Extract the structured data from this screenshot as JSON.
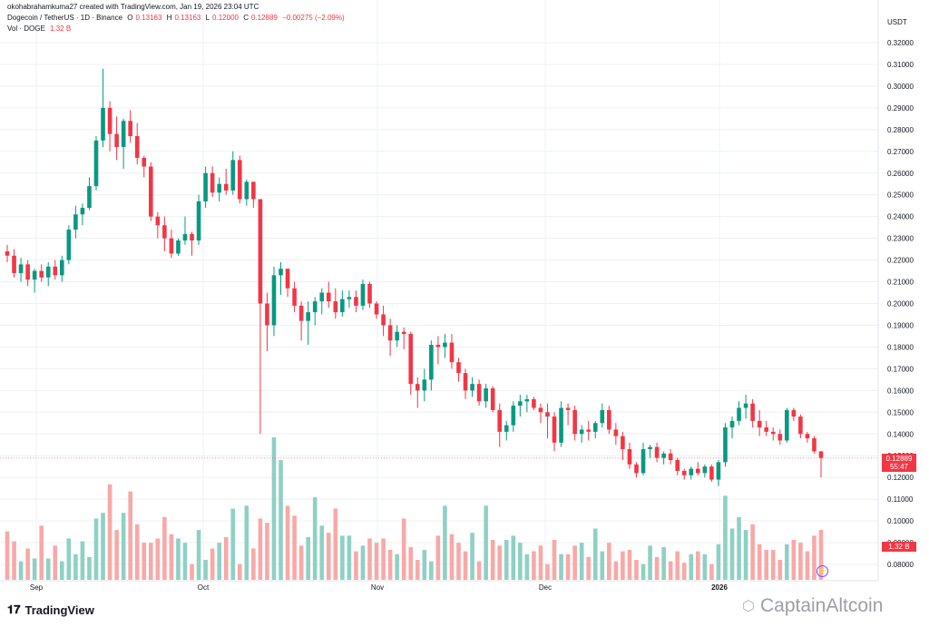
{
  "header": {
    "credit": "okohabrahamkuma27 created with TradingView.com, Jan 19, 2026 23:04 UTC",
    "symbol_line": "Dogecoin / TetherUS · 1D · Binance",
    "open_label": "O",
    "open": "0.13163",
    "high_label": "H",
    "high": "0.13163",
    "low_label": "L",
    "low": "0.12000",
    "close_label": "C",
    "close": "0.12889",
    "change": "−0.00275 (−2.09%)",
    "vol_label": "Vol · DOGE",
    "vol_value": "1.32 B"
  },
  "axis": {
    "unit": "USDT",
    "price_ticks": [
      "0.32000",
      "0.31000",
      "0.30000",
      "0.29000",
      "0.28000",
      "0.27000",
      "0.26000",
      "0.25000",
      "0.24000",
      "0.23000",
      "0.22000",
      "0.21000",
      "0.20000",
      "0.19000",
      "0.18000",
      "0.17000",
      "0.16000",
      "0.15000",
      "0.14000",
      "0.13000",
      "0.12000",
      "0.11000",
      "0.10000",
      "0.09000",
      "0.08000"
    ],
    "month_labels": [
      "Sep",
      "Oct",
      "Nov",
      "Dec",
      "2026"
    ],
    "current_price": "0.12889",
    "countdown": "55:47",
    "volume_tag": "1.32 B"
  },
  "branding": {
    "logo_text": "TradingView",
    "logo_icon": "tradingview-logo-icon",
    "watermark": "CaptainAltcoin",
    "watermark_icon": "captainaltcoin-icon"
  },
  "colors": {
    "up": "#089981",
    "down": "#f23645",
    "vol_up": "#8fd0c5",
    "vol_down": "#f7a9a7",
    "grid": "#eef0f3"
  },
  "chart_data": {
    "type": "candlestick",
    "x_labels": [
      "Sep",
      "Oct",
      "Nov",
      "Dec",
      "2026"
    ],
    "ylim": [
      0.08,
      0.32
    ],
    "candles": [
      [
        0.224,
        0.227,
        0.219,
        0.222
      ],
      [
        0.222,
        0.225,
        0.212,
        0.214
      ],
      [
        0.214,
        0.221,
        0.21,
        0.218
      ],
      [
        0.218,
        0.22,
        0.208,
        0.211
      ],
      [
        0.211,
        0.216,
        0.205,
        0.215
      ],
      [
        0.215,
        0.218,
        0.21,
        0.212
      ],
      [
        0.212,
        0.219,
        0.208,
        0.217
      ],
      [
        0.217,
        0.22,
        0.211,
        0.213
      ],
      [
        0.213,
        0.222,
        0.21,
        0.22
      ],
      [
        0.22,
        0.236,
        0.218,
        0.234
      ],
      [
        0.234,
        0.245,
        0.23,
        0.241
      ],
      [
        0.241,
        0.246,
        0.236,
        0.244
      ],
      [
        0.244,
        0.258,
        0.243,
        0.254
      ],
      [
        0.254,
        0.277,
        0.252,
        0.275
      ],
      [
        0.275,
        0.308,
        0.272,
        0.29
      ],
      [
        0.29,
        0.293,
        0.27,
        0.278
      ],
      [
        0.278,
        0.286,
        0.266,
        0.272
      ],
      [
        0.272,
        0.285,
        0.262,
        0.284
      ],
      [
        0.284,
        0.289,
        0.274,
        0.277
      ],
      [
        0.277,
        0.283,
        0.264,
        0.267
      ],
      [
        0.267,
        0.268,
        0.258,
        0.263
      ],
      [
        0.263,
        0.265,
        0.238,
        0.24
      ],
      [
        0.24,
        0.242,
        0.23,
        0.236
      ],
      [
        0.236,
        0.24,
        0.224,
        0.23
      ],
      [
        0.23,
        0.234,
        0.221,
        0.223
      ],
      [
        0.223,
        0.23,
        0.222,
        0.229
      ],
      [
        0.229,
        0.24,
        0.227,
        0.232
      ],
      [
        0.232,
        0.233,
        0.222,
        0.229
      ],
      [
        0.229,
        0.25,
        0.227,
        0.247
      ],
      [
        0.247,
        0.263,
        0.244,
        0.26
      ],
      [
        0.26,
        0.263,
        0.249,
        0.251
      ],
      [
        0.251,
        0.258,
        0.247,
        0.255
      ],
      [
        0.255,
        0.262,
        0.25,
        0.252
      ],
      [
        0.252,
        0.27,
        0.25,
        0.266
      ],
      [
        0.266,
        0.268,
        0.246,
        0.248
      ],
      [
        0.248,
        0.257,
        0.245,
        0.256
      ],
      [
        0.256,
        0.256,
        0.244,
        0.248
      ],
      [
        0.248,
        0.248,
        0.14,
        0.2
      ],
      [
        0.2,
        0.205,
        0.178,
        0.19
      ],
      [
        0.19,
        0.217,
        0.185,
        0.213
      ],
      [
        0.213,
        0.219,
        0.204,
        0.216
      ],
      [
        0.216,
        0.216,
        0.203,
        0.207
      ],
      [
        0.207,
        0.21,
        0.196,
        0.199
      ],
      [
        0.199,
        0.201,
        0.183,
        0.192
      ],
      [
        0.192,
        0.201,
        0.181,
        0.196
      ],
      [
        0.196,
        0.203,
        0.19,
        0.201
      ],
      [
        0.201,
        0.207,
        0.195,
        0.205
      ],
      [
        0.205,
        0.21,
        0.198,
        0.201
      ],
      [
        0.201,
        0.207,
        0.193,
        0.196
      ],
      [
        0.196,
        0.206,
        0.194,
        0.202
      ],
      [
        0.202,
        0.206,
        0.198,
        0.203
      ],
      [
        0.203,
        0.206,
        0.196,
        0.199
      ],
      [
        0.199,
        0.211,
        0.197,
        0.209
      ],
      [
        0.209,
        0.21,
        0.198,
        0.2
      ],
      [
        0.2,
        0.201,
        0.193,
        0.195
      ],
      [
        0.195,
        0.199,
        0.185,
        0.19
      ],
      [
        0.19,
        0.193,
        0.176,
        0.183
      ],
      [
        0.183,
        0.19,
        0.18,
        0.187
      ],
      [
        0.187,
        0.189,
        0.179,
        0.186
      ],
      [
        0.186,
        0.187,
        0.158,
        0.163
      ],
      [
        0.163,
        0.166,
        0.152,
        0.16
      ],
      [
        0.16,
        0.17,
        0.155,
        0.165
      ],
      [
        0.165,
        0.183,
        0.16,
        0.181
      ],
      [
        0.181,
        0.185,
        0.172,
        0.18
      ],
      [
        0.18,
        0.186,
        0.175,
        0.182
      ],
      [
        0.182,
        0.186,
        0.17,
        0.173
      ],
      [
        0.173,
        0.175,
        0.164,
        0.168
      ],
      [
        0.168,
        0.17,
        0.156,
        0.16
      ],
      [
        0.16,
        0.166,
        0.157,
        0.163
      ],
      [
        0.163,
        0.165,
        0.153,
        0.155
      ],
      [
        0.155,
        0.163,
        0.152,
        0.161
      ],
      [
        0.161,
        0.162,
        0.15,
        0.151
      ],
      [
        0.151,
        0.154,
        0.134,
        0.141
      ],
      [
        0.141,
        0.146,
        0.137,
        0.144
      ],
      [
        0.144,
        0.155,
        0.141,
        0.153
      ],
      [
        0.153,
        0.158,
        0.148,
        0.155
      ],
      [
        0.155,
        0.158,
        0.15,
        0.156
      ],
      [
        0.156,
        0.157,
        0.151,
        0.152
      ],
      [
        0.152,
        0.154,
        0.145,
        0.15
      ],
      [
        0.15,
        0.154,
        0.138,
        0.148
      ],
      [
        0.148,
        0.15,
        0.132,
        0.136
      ],
      [
        0.136,
        0.155,
        0.134,
        0.152
      ],
      [
        0.152,
        0.154,
        0.144,
        0.151
      ],
      [
        0.151,
        0.153,
        0.137,
        0.14
      ],
      [
        0.14,
        0.144,
        0.136,
        0.142
      ],
      [
        0.142,
        0.146,
        0.137,
        0.141
      ],
      [
        0.141,
        0.146,
        0.138,
        0.145
      ],
      [
        0.145,
        0.154,
        0.143,
        0.151
      ],
      [
        0.151,
        0.153,
        0.14,
        0.142
      ],
      [
        0.142,
        0.145,
        0.135,
        0.139
      ],
      [
        0.139,
        0.141,
        0.128,
        0.133
      ],
      [
        0.133,
        0.136,
        0.124,
        0.126
      ],
      [
        0.126,
        0.127,
        0.12,
        0.122
      ],
      [
        0.122,
        0.136,
        0.121,
        0.133
      ],
      [
        0.133,
        0.135,
        0.129,
        0.134
      ],
      [
        0.134,
        0.136,
        0.127,
        0.129
      ],
      [
        0.129,
        0.132,
        0.126,
        0.131
      ],
      [
        0.131,
        0.133,
        0.126,
        0.128
      ],
      [
        0.128,
        0.129,
        0.121,
        0.123
      ],
      [
        0.123,
        0.124,
        0.119,
        0.121
      ],
      [
        0.121,
        0.125,
        0.119,
        0.124
      ],
      [
        0.124,
        0.127,
        0.121,
        0.122
      ],
      [
        0.122,
        0.126,
        0.12,
        0.125
      ],
      [
        0.125,
        0.126,
        0.118,
        0.119
      ],
      [
        0.119,
        0.128,
        0.116,
        0.127
      ],
      [
        0.127,
        0.145,
        0.125,
        0.143
      ],
      [
        0.143,
        0.148,
        0.138,
        0.146
      ],
      [
        0.146,
        0.155,
        0.144,
        0.152
      ],
      [
        0.152,
        0.158,
        0.147,
        0.154
      ],
      [
        0.154,
        0.156,
        0.143,
        0.146
      ],
      [
        0.146,
        0.151,
        0.139,
        0.143
      ],
      [
        0.143,
        0.146,
        0.139,
        0.141
      ],
      [
        0.141,
        0.143,
        0.137,
        0.14
      ],
      [
        0.14,
        0.142,
        0.135,
        0.137
      ],
      [
        0.137,
        0.152,
        0.136,
        0.151
      ],
      [
        0.151,
        0.152,
        0.146,
        0.148
      ],
      [
        0.148,
        0.149,
        0.138,
        0.14
      ],
      [
        0.14,
        0.141,
        0.136,
        0.138
      ],
      [
        0.138,
        0.139,
        0.131,
        0.132
      ],
      [
        0.132,
        0.132,
        0.12,
        0.129
      ]
    ],
    "volume_relative": [
      0.34,
      0.27,
      0.13,
      0.22,
      0.15,
      0.38,
      0.15,
      0.24,
      0.13,
      0.29,
      0.18,
      0.27,
      0.16,
      0.43,
      0.47,
      0.67,
      0.35,
      0.47,
      0.62,
      0.39,
      0.26,
      0.26,
      0.29,
      0.44,
      0.32,
      0.29,
      0.26,
      0.11,
      0.35,
      0.14,
      0.22,
      0.26,
      0.3,
      0.5,
      0.11,
      0.52,
      0.22,
      0.43,
      0.4,
      1.0,
      0.84,
      0.52,
      0.45,
      0.24,
      0.3,
      0.58,
      0.38,
      0.33,
      0.5,
      0.31,
      0.31,
      0.2,
      0.24,
      0.29,
      0.26,
      0.29,
      0.21,
      0.18,
      0.43,
      0.23,
      0.14,
      0.21,
      0.13,
      0.31,
      0.52,
      0.32,
      0.26,
      0.2,
      0.33,
      0.13,
      0.52,
      0.28,
      0.24,
      0.28,
      0.31,
      0.26,
      0.18,
      0.2,
      0.24,
      0.11,
      0.28,
      0.18,
      0.18,
      0.24,
      0.26,
      0.16,
      0.36,
      0.2,
      0.26,
      0.13,
      0.2,
      0.21,
      0.14,
      0.11,
      0.24,
      0.16,
      0.23,
      0.13,
      0.2,
      0.12,
      0.18,
      0.2,
      0.18,
      0.11,
      0.25,
      0.59,
      0.36,
      0.44,
      0.35,
      0.39,
      0.25,
      0.21,
      0.21,
      0.14,
      0.25,
      0.28,
      0.26,
      0.2,
      0.31,
      0.35
    ]
  }
}
